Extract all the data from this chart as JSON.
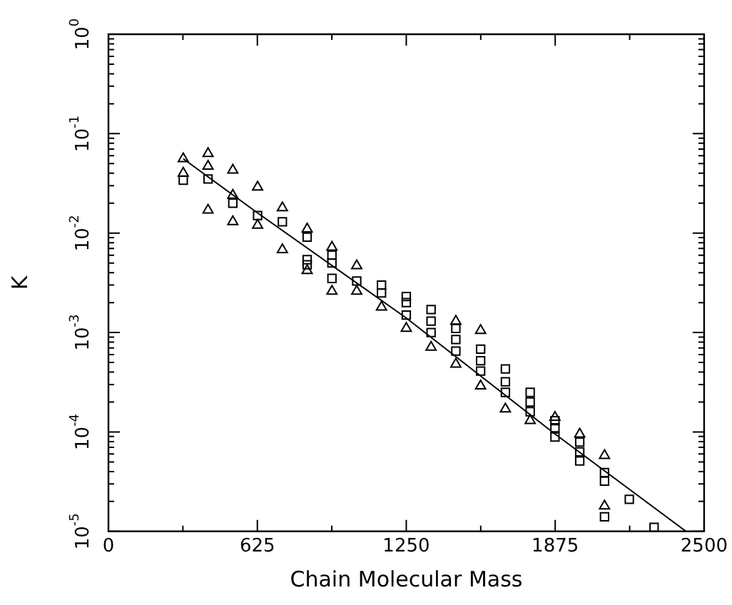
{
  "chart_data": {
    "type": "scatter",
    "xlabel": "Chain Molecular Mass",
    "ylabel": "K",
    "log": "y",
    "grid": false,
    "legend": false,
    "xlim": [
      0,
      2500
    ],
    "xticks": [
      0,
      625,
      1250,
      1875,
      2500
    ],
    "ylim": [
      1e-05,
      1
    ],
    "yticks": [
      {
        "value": 1e-05,
        "label": "10$^{-5}$"
      },
      {
        "value": 0.0001,
        "label": "10$^{-4}$"
      },
      {
        "value": 0.001,
        "label": "10$^{-3}$"
      },
      {
        "value": 0.01,
        "label": "10$^{-2}$"
      },
      {
        "value": 0.1,
        "label": "10$^{-1}$"
      },
      {
        "value": 1,
        "label": "10$^{0}$"
      }
    ],
    "series": [
      {
        "type": "scatter",
        "marker": "triangle",
        "color": "#000000",
        "x": [
          314,
          314,
          418,
          418,
          418,
          522,
          522,
          522,
          626,
          626,
          730,
          730,
          834,
          834,
          938,
          938,
          1042,
          1042,
          1146,
          1250,
          1354,
          1458,
          1458,
          1562,
          1562,
          1666,
          1770,
          1874,
          1978,
          2082,
          2082
        ],
        "values": [
          0.056,
          0.04,
          0.063,
          0.047,
          0.017,
          0.043,
          0.024,
          0.013,
          0.029,
          0.012,
          0.018,
          0.0068,
          0.011,
          0.0042,
          0.0072,
          0.0026,
          0.0047,
          0.0026,
          0.0018,
          0.0011,
          0.00071,
          0.0013,
          0.00048,
          0.00105,
          0.00029,
          0.00017,
          0.00013,
          0.00014,
          9.5e-05,
          5.8e-05,
          1.8e-05
        ]
      },
      {
        "type": "scatter",
        "marker": "square",
        "color": "#000000",
        "x": [
          314,
          418,
          522,
          626,
          730,
          834,
          834,
          834,
          938,
          938,
          938,
          1042,
          1146,
          1146,
          1250,
          1250,
          1250,
          1354,
          1354,
          1354,
          1458,
          1458,
          1458,
          1562,
          1562,
          1562,
          1666,
          1666,
          1666,
          1770,
          1770,
          1770,
          1874,
          1874,
          1874,
          1978,
          1978,
          1978,
          2082,
          2082,
          2082,
          2186,
          2290
        ],
        "values": [
          0.034,
          0.035,
          0.02,
          0.015,
          0.013,
          0.0091,
          0.0054,
          0.0048,
          0.006,
          0.005,
          0.0035,
          0.0033,
          0.003,
          0.0025,
          0.0023,
          0.002,
          0.0015,
          0.0017,
          0.0013,
          0.001,
          0.0011,
          0.00085,
          0.00065,
          0.00068,
          0.00052,
          0.00041,
          0.00043,
          0.00032,
          0.00025,
          0.00025,
          0.0002,
          0.00016,
          0.00013,
          0.00011,
          8.9e-05,
          7.9e-05,
          6.3e-05,
          5.1e-05,
          3.9e-05,
          3.2e-05,
          1.4e-05,
          2.1e-05,
          1.1e-05
        ]
      },
      {
        "type": "line",
        "marker": "none",
        "line_style": "solid",
        "color": "#000000",
        "x": [
          314,
          625,
          1250,
          1875,
          2424
        ],
        "values": [
          0.056,
          0.016,
          0.0014,
          9.5e-05,
          1e-05
        ]
      }
    ]
  }
}
